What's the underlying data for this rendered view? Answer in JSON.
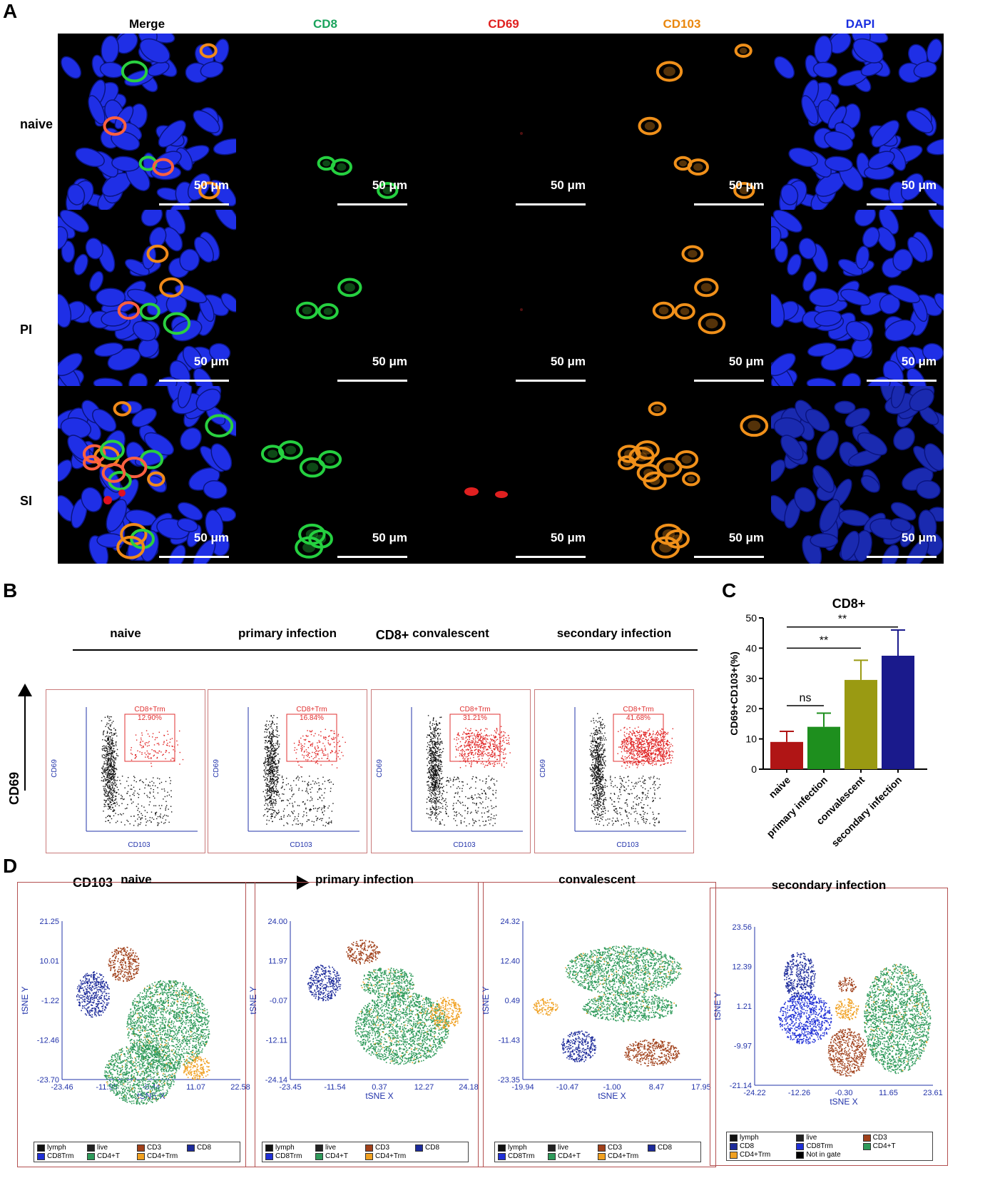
{
  "panel_labels": {
    "a": "A",
    "b": "B",
    "c": "C",
    "d": "D"
  },
  "panelA": {
    "channels": [
      {
        "label": "Merge",
        "color": "#000000"
      },
      {
        "label": "CD8",
        "color": "#1aa35c"
      },
      {
        "label": "CD69",
        "color": "#e0201f"
      },
      {
        "label": "CD103",
        "color": "#e9860c"
      },
      {
        "label": "DAPI",
        "color": "#1a2fe0"
      }
    ],
    "rows": [
      "naive",
      "PI",
      "SI"
    ],
    "scale_bar": "50 μm"
  },
  "panelB": {
    "title": "CD8+",
    "y_axis": "CD69",
    "x_axis": "CD103",
    "plot_x_label": "CD103",
    "plot_y_label": "CD69",
    "gate_label": "CD8+Trm",
    "conditions": [
      {
        "name": "naive",
        "pct": "12.90%"
      },
      {
        "name": "primary infection",
        "pct": "16.84%"
      },
      {
        "name": "convalescent",
        "pct": "31.21%"
      },
      {
        "name": "secondary infection",
        "pct": "41.68%"
      }
    ]
  },
  "chart_data": {
    "type": "bar",
    "title": "CD8+",
    "ylabel": "CD69+CD103+(%)",
    "xlabel": "",
    "ylim": [
      0,
      50
    ],
    "yticks": [
      0,
      10,
      20,
      30,
      40,
      50
    ],
    "categories": [
      "naive",
      "primary infection",
      "convalescent",
      "secondary infection"
    ],
    "values": [
      9,
      14,
      29.5,
      37.5
    ],
    "errors": [
      3.5,
      4.5,
      6.5,
      8.5
    ],
    "colors": [
      "#b01515",
      "#1e8f1e",
      "#9a9a12",
      "#1a1a8c"
    ],
    "annotations": [
      {
        "from": "naive",
        "to": "primary infection",
        "text": "ns"
      },
      {
        "from": "naive",
        "to": "convalescent",
        "text": "**"
      },
      {
        "from": "naive",
        "to": "secondary infection",
        "text": "**"
      }
    ]
  },
  "panelD": {
    "x_label": "tSNE X",
    "y_label": "tSNE Y",
    "plots": [
      {
        "title": "naive",
        "yticks": [
          "21.25",
          "10.01",
          "-1.22",
          "-12.46",
          "-23.70"
        ],
        "xticks": [
          "-23.46",
          "-11.95",
          "-0.44",
          "11.07",
          "22.58"
        ]
      },
      {
        "title": "primary infection",
        "yticks": [
          "24.00",
          "11.97",
          "-0.07",
          "-12.11",
          "-24.14"
        ],
        "xticks": [
          "-23.45",
          "-11.54",
          "0.37",
          "12.27",
          "24.18"
        ]
      },
      {
        "title": "convalescent",
        "yticks": [
          "24.32",
          "12.40",
          "0.49",
          "-11.43",
          "-23.35"
        ],
        "xticks": [
          "-19.94",
          "-10.47",
          "-1.00",
          "8.47",
          "17.95"
        ]
      },
      {
        "title": "secondary infection",
        "yticks": [
          "23.56",
          "12.39",
          "1.21",
          "-9.97",
          "-21.14"
        ],
        "xticks": [
          "-24.22",
          "-12.26",
          "-0.30",
          "11.65",
          "23.61"
        ]
      }
    ],
    "legend_a": [
      {
        "label": "lymph",
        "color": "#111111"
      },
      {
        "label": "live",
        "color": "#222222"
      },
      {
        "label": "CD3",
        "color": "#a0401a"
      },
      {
        "label": "CD8",
        "color": "#1c2a9a"
      },
      {
        "label": "CD8Trm",
        "color": "#1f2fd6"
      },
      {
        "label": "CD4+T",
        "color": "#2e9a5a"
      },
      {
        "label": "CD4+Trm",
        "color": "#f0a020"
      }
    ],
    "legend_b": [
      {
        "label": "lymph",
        "color": "#111111"
      },
      {
        "label": "live",
        "color": "#222222"
      },
      {
        "label": "CD3",
        "color": "#a0401a"
      },
      {
        "label": "CD8",
        "color": "#1c2a9a"
      },
      {
        "label": "CD8Trm",
        "color": "#1f2fd6"
      },
      {
        "label": "CD4+T",
        "color": "#2e9a5a"
      },
      {
        "label": "CD4+Trm",
        "color": "#f0a020"
      },
      {
        "label": "Not in gate",
        "color": "#000000"
      }
    ]
  }
}
